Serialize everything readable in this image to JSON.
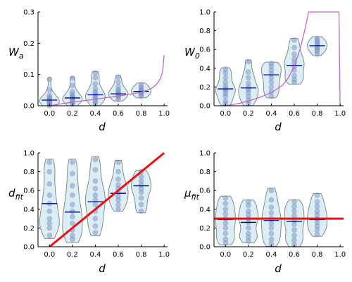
{
  "chart_data": [
    {
      "type": "violin",
      "xlabel": "d",
      "ylabel": "W_a",
      "ylabel_main": "W",
      "ylabel_sub": "a",
      "xlim": [
        -0.1,
        1.03
      ],
      "ylim": [
        0,
        0.3
      ],
      "xticks": [
        "0.0",
        "0.2",
        "0.4",
        "0.6",
        "0.8",
        "1.0"
      ],
      "yticks": [
        "0.0",
        "0.1",
        "0.2",
        "0.3"
      ],
      "groups": [
        {
          "x": 0.0,
          "mean": 0.018,
          "points": [
            0.0,
            0.004,
            0.008,
            0.012,
            0.015,
            0.018,
            0.022,
            0.027,
            0.033,
            0.05,
            0.085
          ]
        },
        {
          "x": 0.2,
          "mean": 0.025,
          "points": [
            0.005,
            0.01,
            0.014,
            0.018,
            0.022,
            0.026,
            0.03,
            0.036,
            0.045,
            0.065,
            0.088
          ]
        },
        {
          "x": 0.4,
          "mean": 0.035,
          "points": [
            0.005,
            0.012,
            0.02,
            0.026,
            0.032,
            0.038,
            0.045,
            0.055,
            0.07,
            0.09,
            0.105
          ]
        },
        {
          "x": 0.6,
          "mean": 0.038,
          "points": [
            0.02,
            0.027,
            0.032,
            0.036,
            0.04,
            0.044,
            0.05,
            0.06,
            0.075,
            0.092
          ]
        },
        {
          "x": 0.8,
          "mean": 0.046,
          "points": [
            0.03,
            0.036,
            0.041,
            0.045,
            0.049,
            0.054,
            0.06,
            0.068
          ]
        }
      ],
      "lines": [
        {
          "color": "#c066d0",
          "width": 1.3,
          "x": [
            0.0,
            0.1,
            0.2,
            0.3,
            0.4,
            0.5,
            0.6,
            0.7,
            0.75,
            0.8,
            0.85,
            0.9,
            0.93,
            0.96,
            0.98,
            0.99,
            1.0
          ],
          "y": [
            0.0,
            0.006,
            0.011,
            0.016,
            0.021,
            0.026,
            0.031,
            0.037,
            0.04,
            0.044,
            0.049,
            0.058,
            0.067,
            0.082,
            0.1,
            0.12,
            0.162
          ]
        }
      ]
    },
    {
      "type": "violin",
      "xlabel": "d",
      "ylabel": "W_0",
      "ylabel_main": "W",
      "ylabel_sub": "0",
      "xlim": [
        -0.1,
        1.03
      ],
      "ylim": [
        0,
        1.0
      ],
      "xticks": [
        "0.0",
        "0.2",
        "0.4",
        "0.6",
        "0.8",
        "1.0"
      ],
      "yticks": [
        "0.0",
        "0.2",
        "0.4",
        "0.6",
        "0.8",
        "1.0"
      ],
      "groups": [
        {
          "x": 0.0,
          "mean": 0.18,
          "points": [
            0.02,
            0.05,
            0.1,
            0.13,
            0.16,
            0.18,
            0.21,
            0.25,
            0.3,
            0.35,
            0.39
          ]
        },
        {
          "x": 0.2,
          "mean": 0.19,
          "points": [
            0.02,
            0.06,
            0.1,
            0.14,
            0.17,
            0.2,
            0.24,
            0.3,
            0.36,
            0.47
          ]
        },
        {
          "x": 0.4,
          "mean": 0.33,
          "points": [
            0.1,
            0.15,
            0.2,
            0.25,
            0.3,
            0.34,
            0.38,
            0.42,
            0.45
          ]
        },
        {
          "x": 0.6,
          "mean": 0.43,
          "points": [
            0.25,
            0.28,
            0.32,
            0.38,
            0.42,
            0.46,
            0.5,
            0.55,
            0.62,
            0.7
          ]
        },
        {
          "x": 0.8,
          "mean": 0.64,
          "points": [
            0.55,
            0.58,
            0.6,
            0.62,
            0.64,
            0.66,
            0.68,
            0.7,
            0.72
          ]
        }
      ],
      "lines": [
        {
          "color": "#c066d0",
          "width": 1.3,
          "x": [
            0.0,
            0.1,
            0.2,
            0.3,
            0.4,
            0.5,
            0.55,
            0.6,
            0.65,
            0.7,
            0.725,
            0.75,
            0.8,
            0.9,
            0.99,
            1.0
          ],
          "y": [
            0.0,
            0.02,
            0.05,
            0.09,
            0.14,
            0.22,
            0.3,
            0.42,
            0.6,
            0.85,
            1.0,
            1.0,
            1.0,
            1.0,
            1.0,
            0.0
          ]
        }
      ]
    },
    {
      "type": "violin",
      "xlabel": "d",
      "ylabel": "d_fit",
      "ylabel_main": "d",
      "ylabel_sub": "fit",
      "xlim": [
        -0.1,
        1.03
      ],
      "ylim": [
        0,
        1.0
      ],
      "xticks": [
        "0.0",
        "0.2",
        "0.4",
        "0.6",
        "0.8",
        "1.0"
      ],
      "yticks": [
        "0.0",
        "0.2",
        "0.4",
        "0.6",
        "0.8",
        "1.0"
      ],
      "groups": [
        {
          "x": 0.0,
          "mean": 0.46,
          "points": [
            0.12,
            0.2,
            0.25,
            0.3,
            0.38,
            0.46,
            0.55,
            0.67,
            0.8,
            0.9
          ]
        },
        {
          "x": 0.2,
          "mean": 0.37,
          "points": [
            0.08,
            0.12,
            0.18,
            0.25,
            0.32,
            0.38,
            0.45,
            0.55,
            0.65,
            0.78,
            0.9
          ]
        },
        {
          "x": 0.4,
          "mean": 0.48,
          "points": [
            0.15,
            0.22,
            0.3,
            0.38,
            0.45,
            0.5,
            0.55,
            0.62,
            0.7,
            0.82,
            0.93
          ]
        },
        {
          "x": 0.6,
          "mean": 0.57,
          "points": [
            0.4,
            0.45,
            0.5,
            0.54,
            0.58,
            0.62,
            0.66,
            0.72,
            0.8,
            0.9
          ]
        },
        {
          "x": 0.8,
          "mean": 0.65,
          "points": [
            0.38,
            0.45,
            0.52,
            0.58,
            0.62,
            0.66,
            0.7,
            0.75,
            0.8
          ]
        }
      ],
      "lines": [
        {
          "color": "#ee1111",
          "width": 3,
          "x": [
            0.0,
            1.0
          ],
          "y": [
            0.0,
            1.0
          ]
        }
      ]
    },
    {
      "type": "violin",
      "xlabel": "d",
      "ylabel": "mu_fit",
      "ylabel_main": "μ",
      "ylabel_sub": "fit",
      "xlim": [
        -0.1,
        1.03
      ],
      "ylim": [
        0,
        1.0
      ],
      "xticks": [
        "0.0",
        "0.2",
        "0.4",
        "0.6",
        "0.8",
        "1.0"
      ],
      "yticks": [
        "0.0",
        "0.2",
        "0.4",
        "0.6",
        "0.8",
        "1.0"
      ],
      "groups": [
        {
          "x": 0.0,
          "mean": 0.29,
          "points": [
            0.04,
            0.08,
            0.14,
            0.2,
            0.25,
            0.3,
            0.35,
            0.4,
            0.46,
            0.52
          ]
        },
        {
          "x": 0.2,
          "mean": 0.26,
          "points": [
            0.06,
            0.1,
            0.14,
            0.2,
            0.26,
            0.3,
            0.34,
            0.38,
            0.44,
            0.48
          ]
        },
        {
          "x": 0.4,
          "mean": 0.28,
          "points": [
            0.03,
            0.08,
            0.14,
            0.2,
            0.25,
            0.3,
            0.36,
            0.42,
            0.5,
            0.6
          ]
        },
        {
          "x": 0.6,
          "mean": 0.27,
          "points": [
            0.02,
            0.07,
            0.12,
            0.18,
            0.24,
            0.28,
            0.33,
            0.38,
            0.43,
            0.48
          ]
        },
        {
          "x": 0.8,
          "mean": 0.29,
          "points": [
            0.13,
            0.18,
            0.22,
            0.26,
            0.3,
            0.34,
            0.38,
            0.43,
            0.48,
            0.55
          ]
        }
      ],
      "lines": [
        {
          "color": "#ee1111",
          "width": 3,
          "x": [
            -0.1,
            1.03
          ],
          "y": [
            0.3,
            0.3
          ]
        }
      ]
    }
  ],
  "style": {
    "violin_fill": "#dbeef4",
    "violin_stroke": "#7f8c8d",
    "point_fill": "#7b8fc4",
    "mean_line": "#00008b",
    "axis_color": "#000000"
  }
}
